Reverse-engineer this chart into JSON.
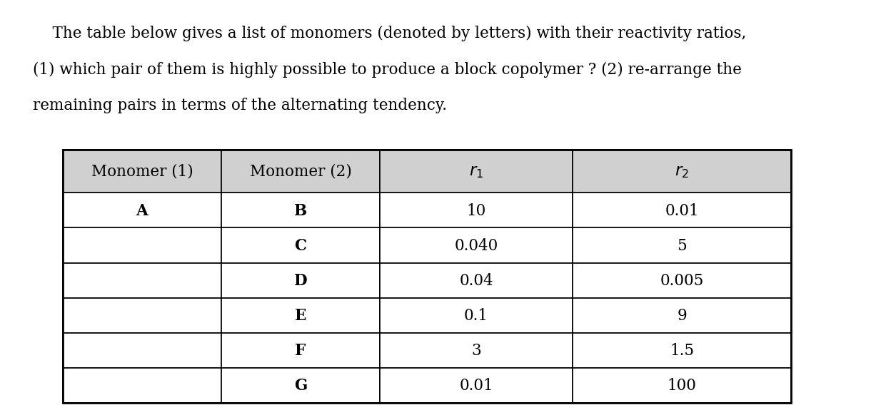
{
  "title_lines": [
    "    The table below gives a list of monomers (denoted by letters) with their reactivity ratios,",
    "(1) which pair of them is highly possible to produce a block copolymer ? (2) re-arrange the",
    "remaining pairs in terms of the alternating tendency."
  ],
  "header": [
    "Monomer (1)",
    "Monomer (2)",
    "r₁",
    "r₂"
  ],
  "header_display": [
    "Monomer (1)",
    "Monomer (2)",
    "r1",
    "r2"
  ],
  "rows": [
    [
      "A",
      "B",
      "10",
      "0.01"
    ],
    [
      "",
      "C",
      "0.040",
      "5"
    ],
    [
      "",
      "D",
      "0.04",
      "0.005"
    ],
    [
      "",
      "E",
      "0.1",
      "9"
    ],
    [
      "",
      "F",
      "3",
      "1.5"
    ],
    [
      "",
      "G",
      "0.01",
      "100"
    ]
  ],
  "header_bg": "#d0d0d0",
  "row_bg": "#ffffff",
  "border_color": "#000000",
  "text_color": "#000000",
  "title_fontsize": 15.5,
  "cell_fontsize": 15.5,
  "fig_width": 12.0,
  "fig_height": 5.28
}
